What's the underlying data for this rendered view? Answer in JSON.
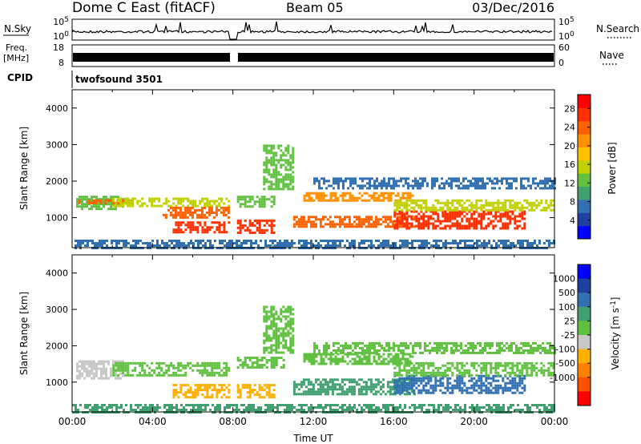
{
  "header": {
    "station": "Dome C East (fitACF)",
    "beam": "Beam 05",
    "date": "03/Dec/2016"
  },
  "top_panels": {
    "nsky": {
      "label": "N.Sky",
      "tick_top": "10^5",
      "tick_bottom": "10^0"
    },
    "nsearch": {
      "label": "N.Search",
      "tick_top": "10^5",
      "tick_bottom": "10^0"
    },
    "freq": {
      "label_line1": "Freq.",
      "label_line2": "[MHz]",
      "tick_top": "18",
      "tick_bottom": "8"
    },
    "nave": {
      "label": "Nave",
      "tick_top": "60",
      "tick_bottom": "0"
    },
    "cpid": {
      "label": "CPID",
      "value": "twofsound 3501"
    }
  },
  "colors": {
    "power_scale": [
      "#0000ff",
      "#2040a0",
      "#3070b0",
      "#40a070",
      "#60c040",
      "#c0d000",
      "#ffc000",
      "#ff9000",
      "#ff6000",
      "#ff3000",
      "#ff0000"
    ],
    "velocity_scale": [
      "#0000ff",
      "#2040a0",
      "#3070b0",
      "#40a070",
      "#60c040",
      "#c8c8c8",
      "#ffb000",
      "#ff8000",
      "#ff5000",
      "#ff0000"
    ]
  },
  "chart_data": [
    {
      "type": "heatmap",
      "name": "power",
      "ylabel": "Slant Range [km]",
      "yticks": [
        1000,
        2000,
        3000,
        4000
      ],
      "ylim": [
        180,
        4500
      ],
      "xlim": [
        0,
        24
      ],
      "colorbar": {
        "label": "Power [dB]",
        "ticks": [
          "4",
          "8",
          "12",
          "16",
          "20",
          "24",
          "28"
        ],
        "range": [
          0,
          31
        ]
      },
      "bands": [
        {
          "t0": 0.2,
          "t1": 2.5,
          "r0": 1250,
          "r1": 1600,
          "value": 14
        },
        {
          "t0": 0.3,
          "t1": 3.0,
          "r0": 1380,
          "r1": 1500,
          "value": 24
        },
        {
          "t0": 2.0,
          "t1": 7.8,
          "r0": 1300,
          "r1": 1550,
          "value": 16
        },
        {
          "t0": 4.5,
          "t1": 7.8,
          "r0": 1000,
          "r1": 1300,
          "value": 24
        },
        {
          "t0": 5.0,
          "t1": 7.8,
          "r0": 600,
          "r1": 900,
          "value": 28
        },
        {
          "t0": 8.2,
          "t1": 10.0,
          "r0": 600,
          "r1": 950,
          "value": 26
        },
        {
          "t0": 8.2,
          "t1": 10.0,
          "r0": 1300,
          "r1": 1600,
          "value": 14
        },
        {
          "t0": 9.5,
          "t1": 11.0,
          "r0": 1800,
          "r1": 3000,
          "value": 12
        },
        {
          "t0": 11.5,
          "t1": 17.0,
          "r0": 1450,
          "r1": 1700,
          "value": 22
        },
        {
          "t0": 11.0,
          "t1": 17.0,
          "r0": 750,
          "r1": 1050,
          "value": 24
        },
        {
          "t0": 16.0,
          "t1": 22.5,
          "r0": 700,
          "r1": 1200,
          "value": 27
        },
        {
          "t0": 16.0,
          "t1": 24.0,
          "r0": 1200,
          "r1": 1500,
          "value": 16
        },
        {
          "t0": 12.0,
          "t1": 24.0,
          "r0": 1800,
          "r1": 2100,
          "value": 8
        },
        {
          "t0": 0.0,
          "t1": 24.0,
          "r0": 200,
          "r1": 400,
          "value": 6
        }
      ]
    },
    {
      "type": "heatmap",
      "name": "velocity",
      "ylabel": "Slant Range [km]",
      "xlabel": "Time UT",
      "yticks": [
        1000,
        2000,
        3000,
        4000
      ],
      "xticks": [
        "00:00",
        "04:00",
        "08:00",
        "12:00",
        "16:00",
        "20:00",
        "00:00"
      ],
      "ylim": [
        180,
        4500
      ],
      "xlim": [
        0,
        24
      ],
      "colorbar": {
        "label": "Velocity [m s^-1]",
        "ticks": [
          "1000",
          "500",
          "100",
          "25",
          "-25",
          "-100",
          "-500",
          "-1000"
        ]
      },
      "bands": [
        {
          "t0": 0.2,
          "t1": 2.5,
          "r0": 1100,
          "r1": 1600,
          "value": "-25"
        },
        {
          "t0": 2.0,
          "t1": 7.8,
          "r0": 1200,
          "r1": 1550,
          "value": "25"
        },
        {
          "t0": 5.0,
          "t1": 7.8,
          "r0": 600,
          "r1": 950,
          "value": "-100"
        },
        {
          "t0": 8.2,
          "t1": 10.0,
          "r0": 600,
          "r1": 950,
          "value": "-100"
        },
        {
          "t0": 8.2,
          "t1": 10.5,
          "r0": 1400,
          "r1": 1700,
          "value": "25"
        },
        {
          "t0": 9.5,
          "t1": 11.0,
          "r0": 1800,
          "r1": 3100,
          "value": "25"
        },
        {
          "t0": 11.5,
          "t1": 17.0,
          "r0": 1500,
          "r1": 1800,
          "value": "25"
        },
        {
          "t0": 11.0,
          "t1": 17.0,
          "r0": 700,
          "r1": 1100,
          "value": "100"
        },
        {
          "t0": 16.0,
          "t1": 22.5,
          "r0": 700,
          "r1": 1200,
          "value": "500"
        },
        {
          "t0": 16.0,
          "t1": 24.0,
          "r0": 1200,
          "r1": 1550,
          "value": "25"
        },
        {
          "t0": 12.0,
          "t1": 24.0,
          "r0": 1800,
          "r1": 2100,
          "value": "25"
        },
        {
          "t0": 0.0,
          "t1": 24.0,
          "r0": 200,
          "r1": 400,
          "value": "100"
        }
      ]
    }
  ]
}
